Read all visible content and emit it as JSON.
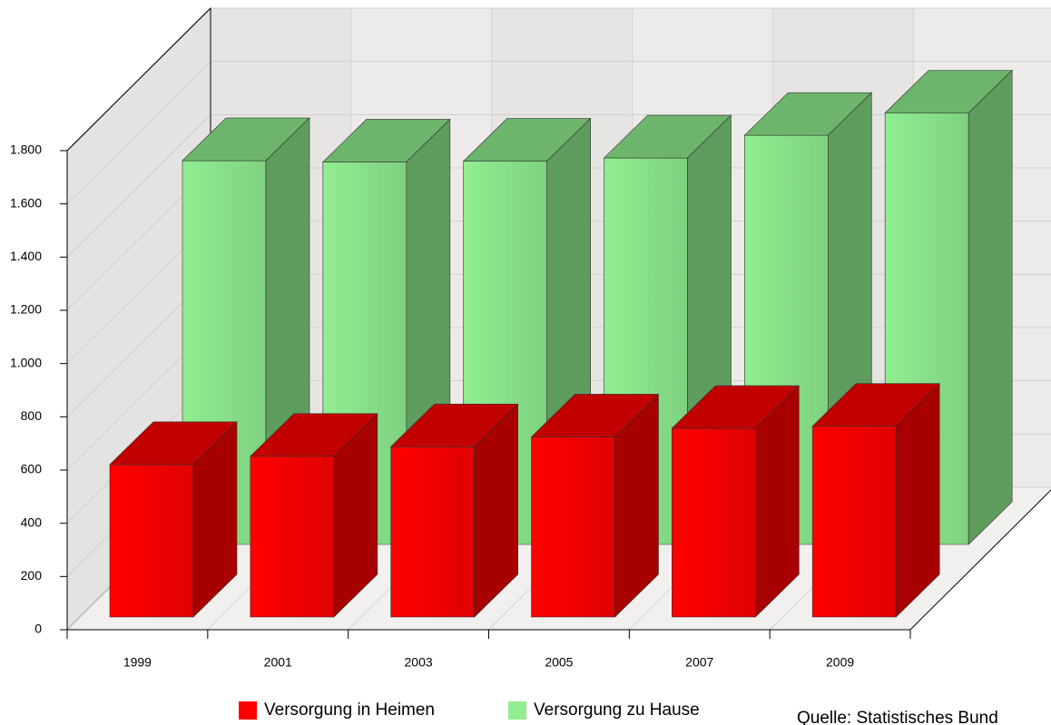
{
  "chart_data": {
    "type": "bar",
    "categories": [
      "1999",
      "2001",
      "2003",
      "2005",
      "2007",
      "2009"
    ],
    "series": [
      {
        "name": "Versorgung in Heimen",
        "color": "#ff0000",
        "values": [
          573,
          604,
          640,
          677,
          709,
          717
        ]
      },
      {
        "name": "Versorgung zu Hause",
        "color": "#90ee90",
        "values": [
          1442,
          1437,
          1440,
          1452,
          1537,
          1621
        ]
      }
    ],
    "ylim": [
      0,
      1800
    ],
    "yticks": [
      0,
      200,
      400,
      600,
      800,
      {
        "value": 1000,
        "label": "1.000"
      },
      {
        "value": 1200,
        "label": "1.200"
      },
      {
        "value": 1400,
        "label": "1.400"
      },
      {
        "value": 1600,
        "label": "1.600"
      },
      {
        "value": 1800,
        "label": "1.800"
      }
    ],
    "grid": true,
    "legend": "bottom",
    "source": "Quelle: Statistisches Bund"
  }
}
